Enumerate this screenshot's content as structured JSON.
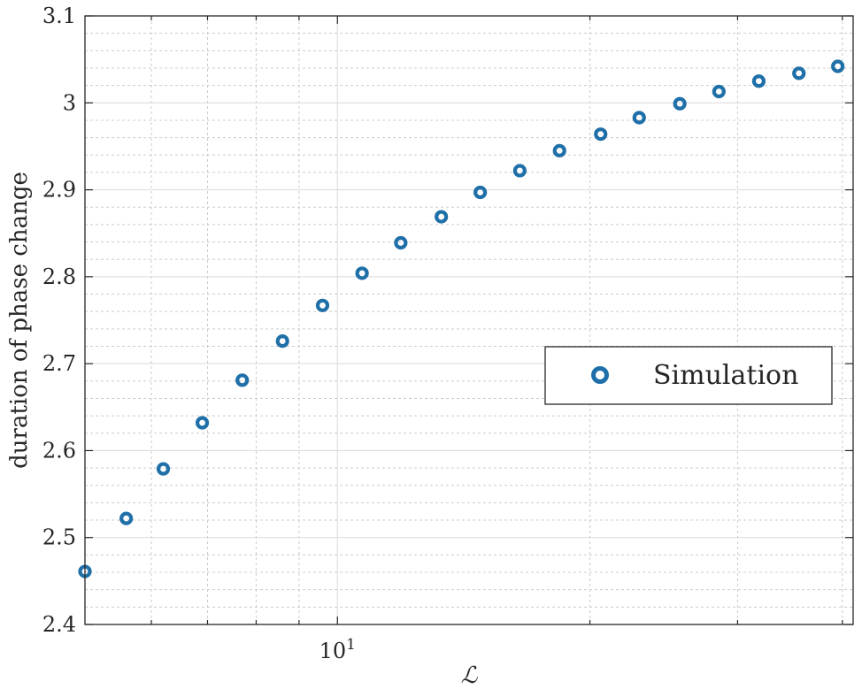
{
  "chart_data": {
    "type": "scatter",
    "title": "",
    "xlabel": "ℒ",
    "ylabel": "duration of phase change",
    "x_scale": "log",
    "xlim": [
      5.0,
      41.2
    ],
    "ylim": [
      2.4,
      3.1
    ],
    "yticks": [
      2.4,
      2.5,
      2.6,
      2.7,
      2.8,
      2.9,
      3.0,
      3.1
    ],
    "ytick_labels": [
      "2.4",
      "2.5",
      "2.6",
      "2.7",
      "2.8",
      "2.9",
      "3",
      "3.1"
    ],
    "xticks_major": [
      {
        "base": "10",
        "exp": "1",
        "value": 10
      }
    ],
    "xticks_minor": [
      6,
      7,
      8,
      9,
      20,
      30,
      40
    ],
    "grid": true,
    "minor_grid": true,
    "legend_position": "center-right",
    "marker_color": "#1f6fa8",
    "series": [
      {
        "name": "Simulation",
        "marker": "circle-open",
        "x": [
          5.0,
          5.6,
          6.2,
          6.9,
          7.7,
          8.6,
          9.6,
          10.7,
          11.9,
          13.3,
          14.8,
          16.5,
          18.4,
          20.6,
          22.9,
          25.6,
          28.5,
          31.8,
          35.5,
          39.5
        ],
        "y": [
          2.461,
          2.522,
          2.579,
          2.632,
          2.681,
          2.726,
          2.767,
          2.804,
          2.839,
          2.869,
          2.897,
          2.922,
          2.945,
          2.964,
          2.983,
          2.999,
          3.013,
          3.025,
          3.034,
          3.042
        ]
      }
    ]
  }
}
